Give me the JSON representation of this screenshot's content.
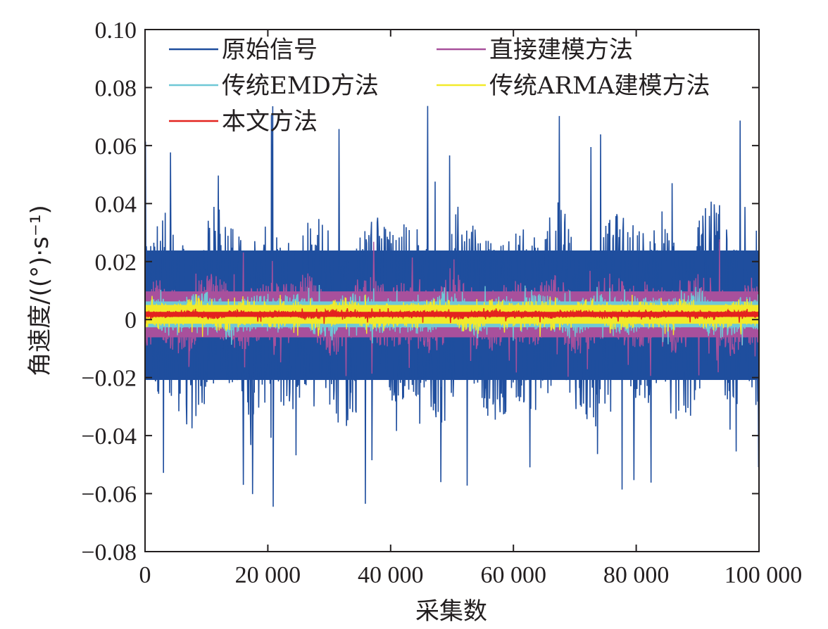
{
  "chart_data": {
    "type": "line",
    "title": "",
    "xlabel": "采集数",
    "ylabel": "角速度/((°)·s⁻¹)",
    "xlim": [
      0,
      100000
    ],
    "ylim": [
      -0.08,
      0.1
    ],
    "xticks": [
      0,
      20000,
      40000,
      60000,
      80000,
      100000
    ],
    "xtick_labels": [
      "0",
      "20 000",
      "40 000",
      "60 000",
      "80 000",
      "100 000"
    ],
    "yticks": [
      -0.08,
      -0.06,
      -0.04,
      -0.02,
      0,
      0.02,
      0.04,
      0.06,
      0.08,
      0.1
    ],
    "ytick_labels": [
      "−0.08",
      "−0.06",
      "−0.04",
      "−0.02",
      "0",
      "0.02",
      "0.04",
      "0.06",
      "0.08",
      "0.10"
    ],
    "grid": false,
    "legend_position": "top",
    "series": [
      {
        "name": "原始信号",
        "color": "#1f4e9e",
        "center": 0.0015,
        "band": 0.031,
        "peak_max": 0.075,
        "peak_min": -0.066
      },
      {
        "name": "直接建模方法",
        "color": "#a8509c",
        "center": 0.0018,
        "band": 0.011,
        "peak_max": 0.028,
        "peak_min": -0.02
      },
      {
        "name": "传统EMD方法",
        "color": "#6fc8d6",
        "center": 0.0018,
        "band": 0.0062,
        "peak_max": 0.012,
        "peak_min": -0.009
      },
      {
        "name": "传统ARMA建模方法",
        "color": "#f2ea2a",
        "center": 0.0018,
        "band": 0.0045,
        "peak_max": 0.009,
        "peak_min": -0.006
      },
      {
        "name": "本文方法",
        "color": "#e3231f",
        "center": 0.0018,
        "band": 0.0012,
        "peak_max": 0.004,
        "peak_min": -0.0015
      }
    ]
  }
}
